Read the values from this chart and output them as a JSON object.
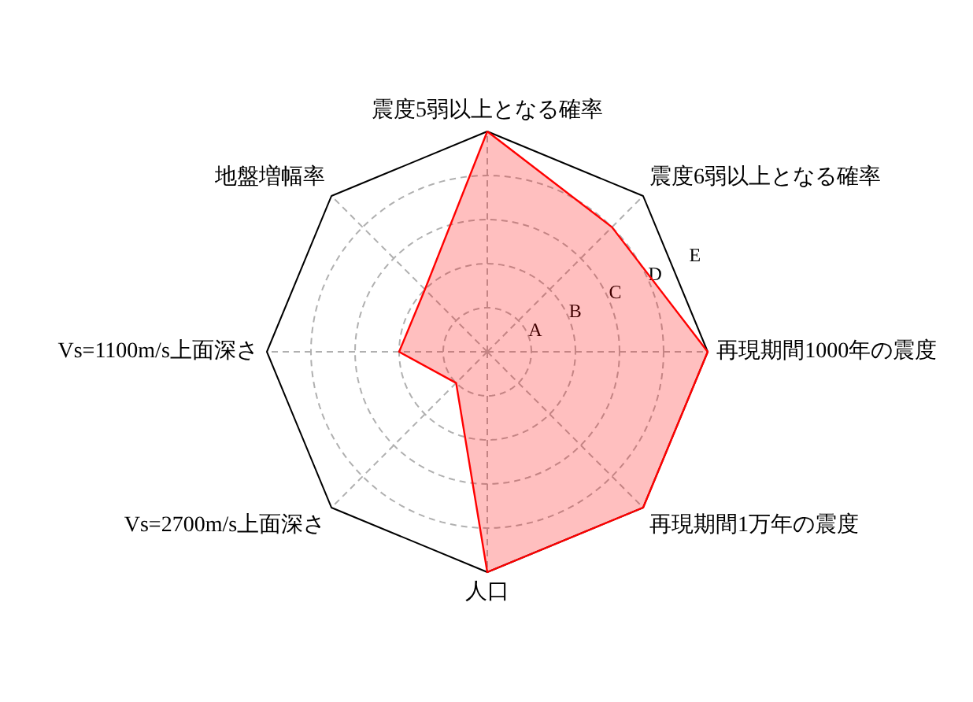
{
  "chart_data": {
    "type": "radar",
    "categories": [
      "震度5弱以上となる確率",
      "震度6弱以上となる確率",
      "再現期間1000年の震度",
      "再現期間1万年の震度",
      "人口",
      "Vs=2700m/s上面深さ",
      "Vs=1100m/s上面深さ",
      "地盤増幅率"
    ],
    "series": [
      {
        "color": "#ff0000",
        "values": [
          5,
          4,
          5,
          5,
          5,
          1,
          2,
          2
        ]
      }
    ],
    "ylim": [
      0,
      5
    ],
    "yticks": [
      {
        "value": 1,
        "label": "A"
      },
      {
        "value": 2,
        "label": "B"
      },
      {
        "value": 3,
        "label": "C"
      },
      {
        "value": 4,
        "label": "D"
      },
      {
        "value": 5,
        "label": "E"
      }
    ],
    "grid": true
  }
}
